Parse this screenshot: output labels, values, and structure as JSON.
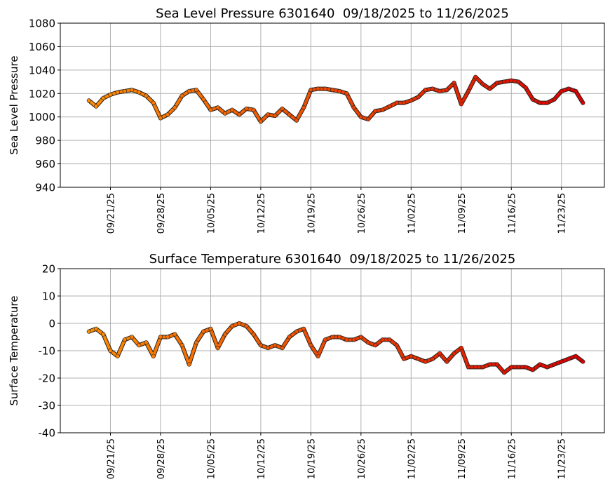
{
  "chart_data": [
    {
      "type": "scatter",
      "title": "Sea Level Pressure 6301640  09/18/2025 to 11/26/2025",
      "ylabel": "Sea Level Pressure",
      "x": [
        "09/18/25",
        "09/19/25",
        "09/20/25",
        "09/21/25",
        "09/22/25",
        "09/23/25",
        "09/24/25",
        "09/25/25",
        "09/26/25",
        "09/27/25",
        "09/28/25",
        "09/29/25",
        "09/30/25",
        "10/01/25",
        "10/02/25",
        "10/03/25",
        "10/04/25",
        "10/05/25",
        "10/06/25",
        "10/07/25",
        "10/08/25",
        "10/09/25",
        "10/10/25",
        "10/11/25",
        "10/12/25",
        "10/13/25",
        "10/14/25",
        "10/15/25",
        "10/16/25",
        "10/17/25",
        "10/18/25",
        "10/19/25",
        "10/20/25",
        "10/21/25",
        "10/22/25",
        "10/23/25",
        "10/24/25",
        "10/25/25",
        "10/26/25",
        "10/27/25",
        "10/28/25",
        "10/29/25",
        "10/30/25",
        "10/31/25",
        "11/01/25",
        "11/02/25",
        "11/03/25",
        "11/04/25",
        "11/05/25",
        "11/06/25",
        "11/07/25",
        "11/08/25",
        "11/09/25",
        "11/10/25",
        "11/11/25",
        "11/12/25",
        "11/13/25",
        "11/14/25",
        "11/15/25",
        "11/16/25",
        "11/17/25",
        "11/18/25",
        "11/19/25",
        "11/20/25",
        "11/21/25",
        "11/22/25",
        "11/23/25",
        "11/24/25",
        "11/25/25",
        "11/26/25"
      ],
      "series": [
        {
          "colormap": [
            "#ff8c00",
            "#dd0000"
          ],
          "values": [
            1014,
            1009,
            1016,
            1019,
            1021,
            1022,
            1023,
            1021,
            1018,
            1012,
            999,
            1002,
            1008,
            1018,
            1022,
            1023,
            1015,
            1006,
            1008,
            1003,
            1006,
            1002,
            1007,
            1006,
            996,
            1002,
            1001,
            1007,
            1002,
            997,
            1008,
            1023,
            1024,
            1024,
            1023,
            1022,
            1020,
            1008,
            1000,
            998,
            1005,
            1006,
            1009,
            1012,
            1012,
            1014,
            1017,
            1023,
            1024,
            1022,
            1023,
            1029,
            1011,
            1022,
            1034,
            1028,
            1024,
            1029,
            1030,
            1031,
            1030,
            1025,
            1015,
            1012,
            1012,
            1015,
            1022,
            1024,
            1022,
            1012
          ]
        }
      ],
      "xlim": [
        "09/14/25",
        "11/29/25"
      ],
      "xticks": [
        "09/21/25",
        "09/28/25",
        "10/05/25",
        "10/12/25",
        "10/19/25",
        "10/26/25",
        "11/02/25",
        "11/09/25",
        "11/16/25",
        "11/23/25"
      ],
      "ylim": [
        940,
        1080
      ],
      "yticks": [
        940,
        960,
        980,
        1000,
        1020,
        1040,
        1060,
        1080
      ],
      "grid": true
    },
    {
      "type": "scatter",
      "title": "Surface Temperature 6301640  09/18/2025 to 11/26/2025",
      "ylabel": "Surface Temperature",
      "x": [
        "09/18/25",
        "09/19/25",
        "09/20/25",
        "09/21/25",
        "09/22/25",
        "09/23/25",
        "09/24/25",
        "09/25/25",
        "09/26/25",
        "09/27/25",
        "09/28/25",
        "09/29/25",
        "09/30/25",
        "10/01/25",
        "10/02/25",
        "10/03/25",
        "10/04/25",
        "10/05/25",
        "10/06/25",
        "10/07/25",
        "10/08/25",
        "10/09/25",
        "10/10/25",
        "10/11/25",
        "10/12/25",
        "10/13/25",
        "10/14/25",
        "10/15/25",
        "10/16/25",
        "10/17/25",
        "10/18/25",
        "10/19/25",
        "10/20/25",
        "10/21/25",
        "10/22/25",
        "10/23/25",
        "10/24/25",
        "10/25/25",
        "10/26/25",
        "10/27/25",
        "10/28/25",
        "10/29/25",
        "10/30/25",
        "10/31/25",
        "11/01/25",
        "11/02/25",
        "11/03/25",
        "11/04/25",
        "11/05/25",
        "11/06/25",
        "11/07/25",
        "11/08/25",
        "11/09/25",
        "11/10/25",
        "11/11/25",
        "11/12/25",
        "11/13/25",
        "11/14/25",
        "11/15/25",
        "11/16/25",
        "11/17/25",
        "11/18/25",
        "11/19/25",
        "11/20/25",
        "11/21/25",
        "11/22/25",
        "11/23/25",
        "11/24/25",
        "11/25/25",
        "11/26/25"
      ],
      "series": [
        {
          "colormap": [
            "#ff8c00",
            "#dd0000"
          ],
          "values": [
            -3,
            -2,
            -4,
            -10,
            -12,
            -6,
            -5,
            -8,
            -7,
            -12,
            -5,
            -5,
            -4,
            -8,
            -15,
            -7,
            -3,
            -2,
            -9,
            -4,
            -1,
            0,
            -1,
            -4,
            -8,
            -9,
            -8,
            -9,
            -5,
            -3,
            -2,
            -8,
            -12,
            -6,
            -5,
            -5,
            -6,
            -6,
            -5,
            -7,
            -8,
            -6,
            -6,
            -8,
            -13,
            -12,
            -13,
            -14,
            -13,
            -11,
            -14,
            -11,
            -9,
            -16,
            -16,
            -16,
            -15,
            -15,
            -18,
            -16,
            -16,
            -16,
            -17,
            -15,
            -16,
            -15,
            -14,
            -13,
            -12,
            -14
          ]
        }
      ],
      "xlim": [
        "09/14/25",
        "11/29/25"
      ],
      "xticks": [
        "09/21/25",
        "09/28/25",
        "10/05/25",
        "10/12/25",
        "10/19/25",
        "10/26/25",
        "11/02/25",
        "11/09/25",
        "11/16/25",
        "11/23/25"
      ],
      "ylim": [
        -40,
        20
      ],
      "yticks": [
        -40,
        -30,
        -20,
        -10,
        0,
        10,
        20
      ],
      "grid": true
    }
  ]
}
